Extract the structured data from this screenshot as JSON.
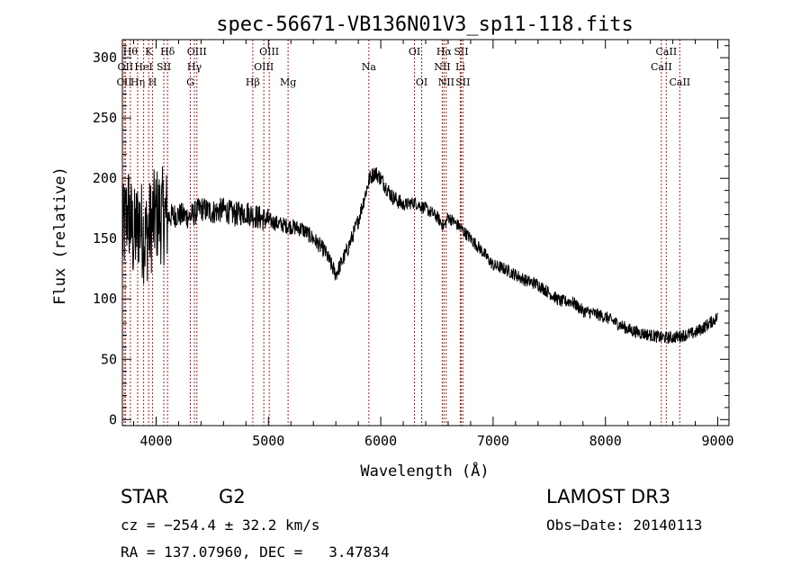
{
  "chart_data": {
    "type": "line",
    "title": "spec-56671-VB136N01V3_sp11-118.fits",
    "xlabel": "Wavelength (Å)",
    "ylabel": "Flux (relative)",
    "xlim": [
      3700,
      9100
    ],
    "ylim": [
      -5,
      315
    ],
    "xticks": [
      4000,
      5000,
      6000,
      7000,
      8000,
      9000
    ],
    "yticks": [
      0,
      50,
      100,
      150,
      200,
      250,
      300
    ],
    "grid": false,
    "legend": "none",
    "series": [
      {
        "color": "#000000",
        "x": [
          3700,
          3750,
          3800,
          3850,
          3900,
          3950,
          4000,
          4100,
          4200,
          4300,
          4400,
          4500,
          4600,
          4700,
          4800,
          4900,
          5000,
          5100,
          5200,
          5300,
          5400,
          5500,
          5600,
          5700,
          5800,
          5900,
          5950,
          6000,
          6100,
          6200,
          6300,
          6400,
          6500,
          6563,
          6600,
          6700,
          6800,
          6900,
          7000,
          7100,
          7200,
          7300,
          7400,
          7500,
          7600,
          7700,
          7800,
          7900,
          8000,
          8100,
          8200,
          8300,
          8400,
          8500,
          8600,
          8700,
          8800,
          8900,
          9000
        ],
        "y": [
          150,
          175,
          150,
          165,
          150,
          160,
          170,
          168,
          170,
          168,
          175,
          172,
          174,
          170,
          172,
          168,
          165,
          162,
          160,
          158,
          150,
          140,
          120,
          140,
          165,
          200,
          205,
          200,
          185,
          178,
          180,
          175,
          168,
          160,
          168,
          160,
          150,
          140,
          128,
          125,
          120,
          115,
          112,
          105,
          98,
          98,
          90,
          88,
          85,
          80,
          75,
          72,
          70,
          68,
          68,
          70,
          72,
          78,
          85
        ]
      }
    ],
    "lines": [
      {
        "name": "CII",
        "x": 3716,
        "row": 2
      },
      {
        "name": "OII",
        "x": 3727,
        "row": 1
      },
      {
        "name": "Hθ",
        "x": 3771,
        "row": 0
      },
      {
        "name": "Hη",
        "x": 3836,
        "row": 2
      },
      {
        "name": "HeI",
        "x": 3889,
        "row": 1
      },
      {
        "name": "K",
        "x": 3934,
        "row": 0
      },
      {
        "name": "H",
        "x": 3969,
        "row": 2
      },
      {
        "name": "SII",
        "x": 4069,
        "row": 1
      },
      {
        "name": "Hδ",
        "x": 4102,
        "row": 0
      },
      {
        "name": "G",
        "x": 4305,
        "row": 2
      },
      {
        "name": "Hγ",
        "x": 4341,
        "row": 1
      },
      {
        "name": "OIII",
        "x": 4363,
        "row": 0
      },
      {
        "name": "Hβ",
        "x": 4861,
        "row": 2
      },
      {
        "name": "OIII",
        "x": 4959,
        "row": 1
      },
      {
        "name": "OIII",
        "x": 5007,
        "row": 0
      },
      {
        "name": "Mg",
        "x": 5175,
        "row": 2
      },
      {
        "name": "Na",
        "x": 5894,
        "row": 1
      },
      {
        "name": "OI",
        "x": 6300,
        "row": 0
      },
      {
        "name": "OI",
        "x": 6364,
        "row": 2
      },
      {
        "name": "NII",
        "x": 6548,
        "row": 1
      },
      {
        "name": "Hα",
        "x": 6563,
        "row": 0
      },
      {
        "name": "NII",
        "x": 6583,
        "row": 2
      },
      {
        "name": "Li",
        "x": 6708,
        "row": 1
      },
      {
        "name": "SII",
        "x": 6716,
        "row": 0
      },
      {
        "name": "SII",
        "x": 6731,
        "row": 2
      },
      {
        "name": "CaII",
        "x": 8498,
        "row": 1
      },
      {
        "name": "CaII",
        "x": 8542,
        "row": 0
      },
      {
        "name": "CaII",
        "x": 8662,
        "row": 2
      }
    ]
  },
  "info": {
    "object_class": "STAR",
    "subclass": "G2",
    "survey": "LAMOST DR3",
    "redshift": "cz = −254.4 ± 32.2 km/s",
    "obs_date": "Obs−Date: 20140113",
    "coords": "RA = 137.07960, DEC =   3.47834"
  }
}
